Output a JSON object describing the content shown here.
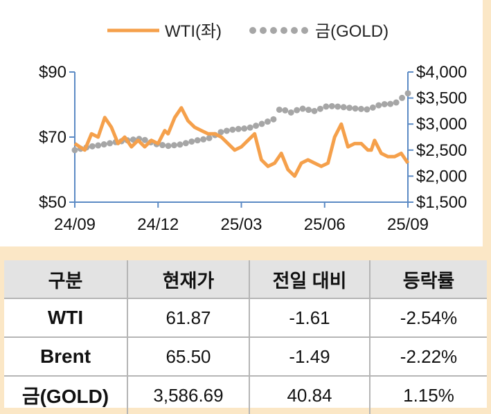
{
  "chart_data": {
    "type": "line",
    "legend": {
      "placement": "top-center",
      "entries": [
        {
          "label": "WTI(좌)",
          "style": "solid",
          "color": "#f5a04b"
        },
        {
          "label": "금(GOLD)",
          "style": "dotted",
          "color": "#a6a6a6"
        }
      ]
    },
    "x_tick_labels": [
      "24/09",
      "24/12",
      "25/03",
      "25/06",
      "25/09"
    ],
    "x_range": [
      "2024-09",
      "2025-09"
    ],
    "y_left": {
      "range": [
        50,
        90
      ],
      "tick_labels": [
        "$90",
        "$70",
        "$50"
      ],
      "ticks": [
        90,
        70,
        50
      ]
    },
    "y_right": {
      "range": [
        1500,
        4000
      ],
      "tick_labels": [
        "$4,000",
        "$3,500",
        "$3,000",
        "$2,500",
        "$2,000",
        "$1,500"
      ],
      "ticks": [
        4000,
        3500,
        3000,
        2500,
        2000,
        1500
      ]
    },
    "grid": false,
    "axis_color": "#5b8ac4",
    "series": [
      {
        "name": "WTI(좌)",
        "axis": "left",
        "color": "#f5a04b",
        "x": [
          0.0,
          0.03,
          0.05,
          0.07,
          0.09,
          0.11,
          0.13,
          0.15,
          0.17,
          0.19,
          0.21,
          0.23,
          0.25,
          0.27,
          0.28,
          0.3,
          0.32,
          0.34,
          0.36,
          0.38,
          0.4,
          0.42,
          0.44,
          0.46,
          0.48,
          0.5,
          0.52,
          0.54,
          0.56,
          0.58,
          0.6,
          0.62,
          0.64,
          0.66,
          0.68,
          0.7,
          0.72,
          0.74,
          0.76,
          0.78,
          0.8,
          0.82,
          0.84,
          0.85,
          0.86,
          0.87,
          0.88,
          0.89,
          0.9,
          0.92,
          0.94,
          0.96,
          0.98,
          1.0
        ],
        "y": [
          68,
          66,
          71,
          70,
          76,
          73,
          68,
          70,
          67,
          69,
          67,
          69,
          68,
          72,
          71,
          76,
          79,
          75,
          73,
          72,
          71,
          71,
          70,
          68,
          66,
          67,
          69,
          71,
          63,
          61,
          62,
          65,
          60,
          58,
          62,
          63,
          62,
          61,
          62,
          70,
          74,
          67,
          68,
          68,
          68,
          67,
          66,
          66,
          69,
          65,
          64,
          64,
          65,
          62
        ]
      },
      {
        "name": "금(GOLD)",
        "axis": "right",
        "color": "#a6a6a6",
        "x": [
          0.0,
          0.04,
          0.08,
          0.12,
          0.16,
          0.2,
          0.24,
          0.28,
          0.32,
          0.36,
          0.4,
          0.44,
          0.48,
          0.52,
          0.56,
          0.6,
          0.62,
          0.64,
          0.68,
          0.72,
          0.76,
          0.8,
          0.84,
          0.88,
          0.92,
          0.96,
          1.0
        ],
        "y": [
          2500,
          2560,
          2600,
          2650,
          2690,
          2720,
          2620,
          2580,
          2610,
          2680,
          2720,
          2850,
          2900,
          2920,
          3000,
          3100,
          3350,
          3200,
          3300,
          3250,
          3350,
          3330,
          3300,
          3280,
          3380,
          3390,
          3590
        ]
      }
    ]
  },
  "table": {
    "headers": [
      "구분",
      "현재가",
      "전일 대비",
      "등락률"
    ],
    "rows": [
      {
        "name": "WTI",
        "price": "61.87",
        "change": "-1.61",
        "rate": "-2.54%"
      },
      {
        "name": "Brent",
        "price": "65.50",
        "change": "-1.49",
        "rate": "-2.22%"
      },
      {
        "name": "금(GOLD)",
        "price": "3,586.69",
        "change": "40.84",
        "rate": "1.15%"
      }
    ]
  }
}
